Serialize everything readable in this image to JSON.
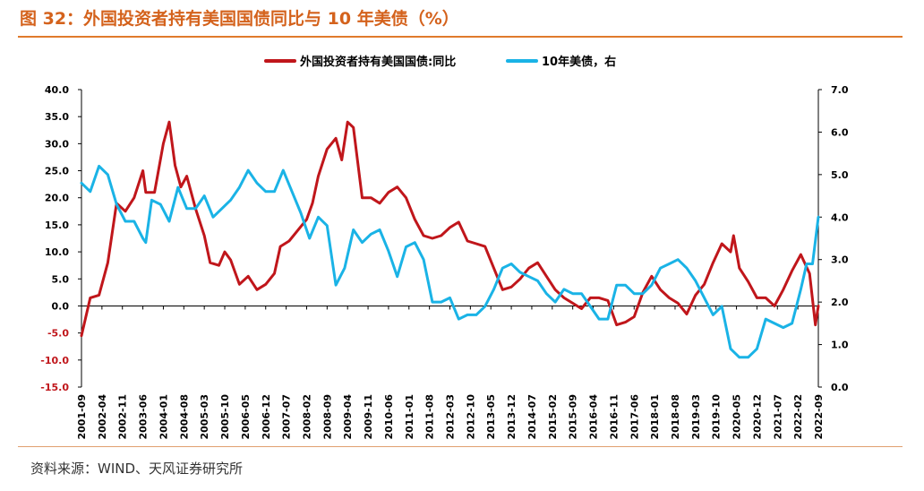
{
  "page": {
    "title": "图 32：外国投资者持有美国国债同比与 10 年美债（%）",
    "source": "资料来源：WIND、天风证券研究所"
  },
  "chart_data": {
    "type": "line",
    "legend_position": "top-center",
    "grid": false,
    "colors": {
      "left_series": "#c0161b",
      "right_series": "#1ab3e6",
      "axis": "#000000"
    },
    "left_axis": {
      "range": [
        -15,
        40
      ],
      "ticks": [
        -15,
        -10,
        -5,
        0,
        5,
        10,
        15,
        20,
        25,
        30,
        35,
        40
      ],
      "tick_labels": [
        "-15.0",
        "-10.0",
        "-5.0",
        "0.0",
        "5.0",
        "10.0",
        "15.0",
        "20.0",
        "25.0",
        "30.0",
        "35.0",
        "40.0"
      ]
    },
    "right_axis": {
      "range": [
        0,
        7
      ],
      "ticks": [
        0,
        1,
        2,
        3,
        4,
        5,
        6,
        7
      ],
      "tick_labels": [
        "0.0",
        "1.0",
        "2.0",
        "3.0",
        "4.0",
        "5.0",
        "6.0",
        "7.0"
      ]
    },
    "x_range": [
      "2001-09",
      "2022-09"
    ],
    "x_tick_labels": [
      "2001-09",
      "2002-04",
      "2002-11",
      "2003-06",
      "2004-01",
      "2004-08",
      "2005-03",
      "2005-10",
      "2006-05",
      "2006-12",
      "2007-07",
      "2008-02",
      "2008-09",
      "2009-04",
      "2009-11",
      "2010-06",
      "2011-01",
      "2011-08",
      "2012-03",
      "2012-10",
      "2013-05",
      "2013-12",
      "2014-07",
      "2015-02",
      "2015-09",
      "2016-04",
      "2016-11",
      "2017-06",
      "2018-01",
      "2018-08",
      "2019-03",
      "2019-10",
      "2020-05",
      "2020-12",
      "2021-07",
      "2022-02",
      "2022-09"
    ],
    "series": [
      {
        "name": "外国投资者持有美国国债:同比",
        "axis": "left",
        "points": [
          [
            "2001-09",
            -5.5
          ],
          [
            "2001-12",
            1.5
          ],
          [
            "2002-03",
            2.0
          ],
          [
            "2002-06",
            8
          ],
          [
            "2002-09",
            19
          ],
          [
            "2002-12",
            17.5
          ],
          [
            "2003-03",
            20
          ],
          [
            "2003-06",
            25
          ],
          [
            "2003-07",
            21
          ],
          [
            "2003-10",
            21
          ],
          [
            "2004-01",
            30
          ],
          [
            "2004-03",
            34
          ],
          [
            "2004-05",
            26
          ],
          [
            "2004-07",
            22
          ],
          [
            "2004-09",
            24
          ],
          [
            "2004-12",
            18
          ],
          [
            "2005-03",
            13
          ],
          [
            "2005-05",
            8
          ],
          [
            "2005-08",
            7.5
          ],
          [
            "2005-10",
            10
          ],
          [
            "2005-12",
            8.5
          ],
          [
            "2006-03",
            4
          ],
          [
            "2006-06",
            5.5
          ],
          [
            "2006-09",
            3
          ],
          [
            "2006-12",
            4
          ],
          [
            "2007-03",
            6
          ],
          [
            "2007-05",
            11
          ],
          [
            "2007-08",
            12
          ],
          [
            "2007-11",
            14
          ],
          [
            "2008-02",
            16
          ],
          [
            "2008-04",
            19
          ],
          [
            "2008-06",
            24
          ],
          [
            "2008-09",
            29
          ],
          [
            "2008-12",
            31
          ],
          [
            "2009-02",
            27
          ],
          [
            "2009-04",
            34
          ],
          [
            "2009-06",
            33
          ],
          [
            "2009-09",
            20
          ],
          [
            "2009-12",
            20
          ],
          [
            "2010-03",
            19
          ],
          [
            "2010-06",
            21
          ],
          [
            "2010-09",
            22
          ],
          [
            "2010-12",
            20
          ],
          [
            "2011-03",
            16
          ],
          [
            "2011-06",
            13
          ],
          [
            "2011-09",
            12.5
          ],
          [
            "2011-12",
            13
          ],
          [
            "2012-03",
            14.5
          ],
          [
            "2012-06",
            15.5
          ],
          [
            "2012-09",
            12
          ],
          [
            "2012-12",
            11.5
          ],
          [
            "2013-03",
            11
          ],
          [
            "2013-06",
            7
          ],
          [
            "2013-09",
            3
          ],
          [
            "2013-12",
            3.5
          ],
          [
            "2014-03",
            5
          ],
          [
            "2014-06",
            7
          ],
          [
            "2014-09",
            8
          ],
          [
            "2014-12",
            5.5
          ],
          [
            "2015-03",
            3
          ],
          [
            "2015-06",
            1.5
          ],
          [
            "2015-09",
            0.5
          ],
          [
            "2015-12",
            -0.5
          ],
          [
            "2016-03",
            1.5
          ],
          [
            "2016-06",
            1.5
          ],
          [
            "2016-09",
            1.0
          ],
          [
            "2016-12",
            -3.5
          ],
          [
            "2017-03",
            -3.0
          ],
          [
            "2017-06",
            -2.0
          ],
          [
            "2017-09",
            2.5
          ],
          [
            "2017-12",
            5.5
          ],
          [
            "2018-03",
            3
          ],
          [
            "2018-06",
            1.5
          ],
          [
            "2018-09",
            0.5
          ],
          [
            "2018-12",
            -1.5
          ],
          [
            "2019-03",
            2
          ],
          [
            "2019-06",
            4
          ],
          [
            "2019-09",
            8
          ],
          [
            "2019-12",
            11.5
          ],
          [
            "2020-03",
            10
          ],
          [
            "2020-04",
            13
          ],
          [
            "2020-06",
            7
          ],
          [
            "2020-09",
            4.5
          ],
          [
            "2020-12",
            1.5
          ],
          [
            "2021-03",
            1.5
          ],
          [
            "2021-06",
            0
          ],
          [
            "2021-09",
            3
          ],
          [
            "2021-12",
            6.5
          ],
          [
            "2022-03",
            9.5
          ],
          [
            "2022-06",
            6
          ],
          [
            "2022-08",
            -3.5
          ],
          [
            "2022-09",
            0
          ]
        ]
      },
      {
        "name": "10年美债，右",
        "axis": "right",
        "points": [
          [
            "2001-09",
            4.8
          ],
          [
            "2001-12",
            4.6
          ],
          [
            "2002-03",
            5.2
          ],
          [
            "2002-06",
            5.0
          ],
          [
            "2002-09",
            4.3
          ],
          [
            "2002-12",
            3.9
          ],
          [
            "2003-03",
            3.9
          ],
          [
            "2003-06",
            3.5
          ],
          [
            "2003-07",
            3.4
          ],
          [
            "2003-09",
            4.4
          ],
          [
            "2003-12",
            4.3
          ],
          [
            "2004-03",
            3.9
          ],
          [
            "2004-06",
            4.7
          ],
          [
            "2004-09",
            4.2
          ],
          [
            "2004-12",
            4.2
          ],
          [
            "2005-03",
            4.5
          ],
          [
            "2005-06",
            4.0
          ],
          [
            "2005-09",
            4.2
          ],
          [
            "2005-12",
            4.4
          ],
          [
            "2006-03",
            4.7
          ],
          [
            "2006-06",
            5.1
          ],
          [
            "2006-09",
            4.8
          ],
          [
            "2006-12",
            4.6
          ],
          [
            "2007-03",
            4.6
          ],
          [
            "2007-06",
            5.1
          ],
          [
            "2007-09",
            4.6
          ],
          [
            "2007-12",
            4.1
          ],
          [
            "2008-03",
            3.5
          ],
          [
            "2008-06",
            4.0
          ],
          [
            "2008-09",
            3.8
          ],
          [
            "2008-12",
            2.4
          ],
          [
            "2009-03",
            2.8
          ],
          [
            "2009-06",
            3.7
          ],
          [
            "2009-09",
            3.4
          ],
          [
            "2009-12",
            3.6
          ],
          [
            "2010-03",
            3.7
          ],
          [
            "2010-06",
            3.2
          ],
          [
            "2010-09",
            2.6
          ],
          [
            "2010-12",
            3.3
          ],
          [
            "2011-03",
            3.4
          ],
          [
            "2011-06",
            3.0
          ],
          [
            "2011-09",
            2.0
          ],
          [
            "2011-12",
            2.0
          ],
          [
            "2012-03",
            2.1
          ],
          [
            "2012-06",
            1.6
          ],
          [
            "2012-09",
            1.7
          ],
          [
            "2012-12",
            1.7
          ],
          [
            "2013-03",
            1.9
          ],
          [
            "2013-06",
            2.3
          ],
          [
            "2013-09",
            2.8
          ],
          [
            "2013-12",
            2.9
          ],
          [
            "2014-03",
            2.7
          ],
          [
            "2014-06",
            2.6
          ],
          [
            "2014-09",
            2.5
          ],
          [
            "2014-12",
            2.2
          ],
          [
            "2015-03",
            2.0
          ],
          [
            "2015-06",
            2.3
          ],
          [
            "2015-09",
            2.2
          ],
          [
            "2015-12",
            2.2
          ],
          [
            "2016-03",
            1.9
          ],
          [
            "2016-06",
            1.6
          ],
          [
            "2016-09",
            1.6
          ],
          [
            "2016-12",
            2.4
          ],
          [
            "2017-03",
            2.4
          ],
          [
            "2017-06",
            2.2
          ],
          [
            "2017-09",
            2.2
          ],
          [
            "2017-12",
            2.4
          ],
          [
            "2018-03",
            2.8
          ],
          [
            "2018-06",
            2.9
          ],
          [
            "2018-09",
            3.0
          ],
          [
            "2018-12",
            2.8
          ],
          [
            "2019-03",
            2.5
          ],
          [
            "2019-06",
            2.1
          ],
          [
            "2019-09",
            1.7
          ],
          [
            "2019-12",
            1.9
          ],
          [
            "2020-03",
            0.9
          ],
          [
            "2020-06",
            0.7
          ],
          [
            "2020-09",
            0.7
          ],
          [
            "2020-12",
            0.9
          ],
          [
            "2021-03",
            1.6
          ],
          [
            "2021-06",
            1.5
          ],
          [
            "2021-09",
            1.4
          ],
          [
            "2021-12",
            1.5
          ],
          [
            "2022-03",
            2.3
          ],
          [
            "2022-05",
            2.9
          ],
          [
            "2022-07",
            2.9
          ],
          [
            "2022-09",
            4.0
          ]
        ]
      }
    ]
  }
}
